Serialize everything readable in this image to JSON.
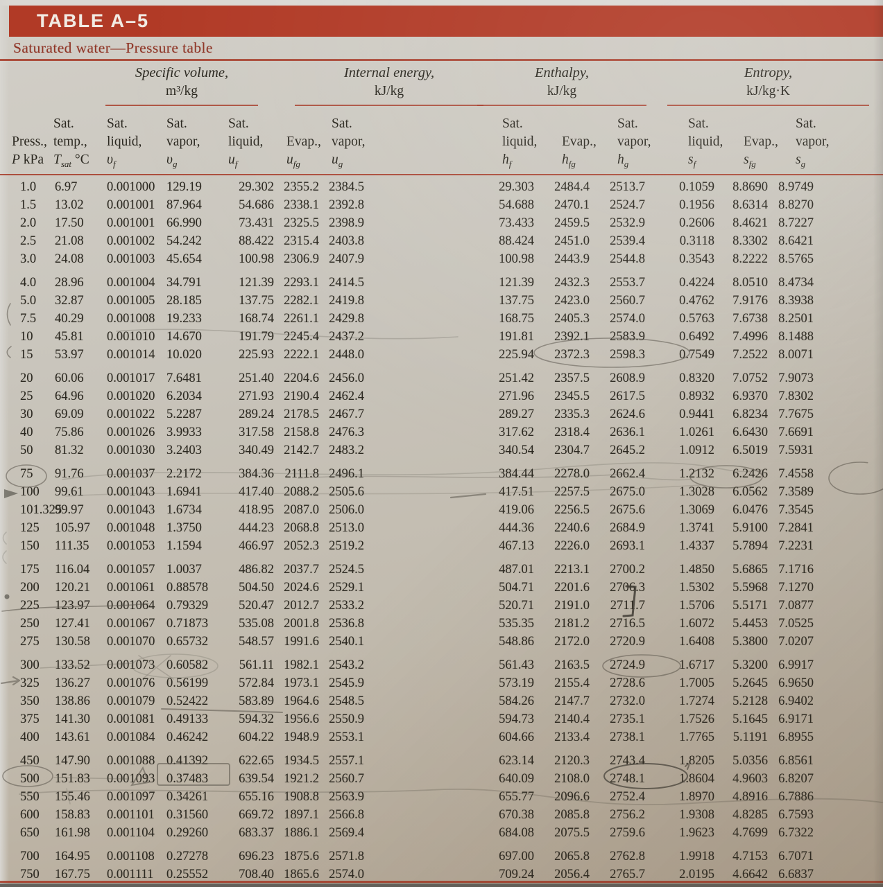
{
  "page": {
    "title": "TABLE A–5",
    "subtitle": "Saturated water—Pressure table",
    "band_color": "#b13a26",
    "rule_color": "#a63826",
    "paper_color": "#c9c5bc",
    "pencil_color": "#5b574e"
  },
  "table": {
    "col_groups": [
      {
        "label": "Specific volume,",
        "unit": "m³/kg"
      },
      {
        "label": "Internal energy,",
        "unit": "kJ/kg"
      },
      {
        "label": "Enthalpy,",
        "unit": "kJ/kg"
      },
      {
        "label": "Entropy,",
        "unit": "kJ/kg·K"
      }
    ],
    "columns": [
      {
        "top": "",
        "mid": "Press.,",
        "sym": "P",
        "sub": "",
        "tail": " kPa"
      },
      {
        "top": "Sat.",
        "mid": "temp.,",
        "sym": "T",
        "sub": "sat",
        "tail": " °C"
      },
      {
        "top": "Sat.",
        "mid": "liquid,",
        "sym": "υ",
        "sub": "f",
        "tail": ""
      },
      {
        "top": "Sat.",
        "mid": "vapor,",
        "sym": "υ",
        "sub": "g",
        "tail": ""
      },
      {
        "top": "Sat.",
        "mid": "liquid,",
        "sym": "u",
        "sub": "f",
        "tail": ""
      },
      {
        "top": "",
        "mid": "Evap.,",
        "sym": "u",
        "sub": "fg",
        "tail": ""
      },
      {
        "top": "Sat.",
        "mid": "vapor,",
        "sym": "u",
        "sub": "g",
        "tail": ""
      },
      {
        "top": "Sat.",
        "mid": "liquid,",
        "sym": "h",
        "sub": "f",
        "tail": ""
      },
      {
        "top": "",
        "mid": "Evap.,",
        "sym": "h",
        "sub": "fg",
        "tail": ""
      },
      {
        "top": "Sat.",
        "mid": "vapor,",
        "sym": "h",
        "sub": "g",
        "tail": ""
      },
      {
        "top": "Sat.",
        "mid": "liquid,",
        "sym": "s",
        "sub": "f",
        "tail": ""
      },
      {
        "top": "",
        "mid": "Evap.,",
        "sym": "s",
        "sub": "fg",
        "tail": ""
      },
      {
        "top": "Sat.",
        "mid": "vapor,",
        "sym": "s",
        "sub": "g",
        "tail": ""
      }
    ],
    "row_groups": [
      [
        [
          "1.0",
          "6.97",
          "0.001000",
          "129.19",
          "29.302",
          "2355.2",
          "2384.5",
          "29.303",
          "2484.4",
          "2513.7",
          "0.1059",
          "8.8690",
          "8.9749"
        ],
        [
          "1.5",
          "13.02",
          "0.001001",
          "87.964",
          "54.686",
          "2338.1",
          "2392.8",
          "54.688",
          "2470.1",
          "2524.7",
          "0.1956",
          "8.6314",
          "8.8270"
        ],
        [
          "2.0",
          "17.50",
          "0.001001",
          "66.990",
          "73.431",
          "2325.5",
          "2398.9",
          "73.433",
          "2459.5",
          "2532.9",
          "0.2606",
          "8.4621",
          "8.7227"
        ],
        [
          "2.5",
          "21.08",
          "0.001002",
          "54.242",
          "88.422",
          "2315.4",
          "2403.8",
          "88.424",
          "2451.0",
          "2539.4",
          "0.3118",
          "8.3302",
          "8.6421"
        ],
        [
          "3.0",
          "24.08",
          "0.001003",
          "45.654",
          "100.98",
          "2306.9",
          "2407.9",
          "100.98",
          "2443.9",
          "2544.8",
          "0.3543",
          "8.2222",
          "8.5765"
        ]
      ],
      [
        [
          "4.0",
          "28.96",
          "0.001004",
          "34.791",
          "121.39",
          "2293.1",
          "2414.5",
          "121.39",
          "2432.3",
          "2553.7",
          "0.4224",
          "8.0510",
          "8.4734"
        ],
        [
          "5.0",
          "32.87",
          "0.001005",
          "28.185",
          "137.75",
          "2282.1",
          "2419.8",
          "137.75",
          "2423.0",
          "2560.7",
          "0.4762",
          "7.9176",
          "8.3938"
        ],
        [
          "7.5",
          "40.29",
          "0.001008",
          "19.233",
          "168.74",
          "2261.1",
          "2429.8",
          "168.75",
          "2405.3",
          "2574.0",
          "0.5763",
          "7.6738",
          "8.2501"
        ],
        [
          "10",
          "45.81",
          "0.001010",
          "14.670",
          "191.79",
          "2245.4",
          "2437.2",
          "191.81",
          "2392.1",
          "2583.9",
          "0.6492",
          "7.4996",
          "8.1488"
        ],
        [
          "15",
          "53.97",
          "0.001014",
          "10.020",
          "225.93",
          "2222.1",
          "2448.0",
          "225.94",
          "2372.3",
          "2598.3",
          "0.7549",
          "7.2522",
          "8.0071"
        ]
      ],
      [
        [
          "20",
          "60.06",
          "0.001017",
          "7.6481",
          "251.40",
          "2204.6",
          "2456.0",
          "251.42",
          "2357.5",
          "2608.9",
          "0.8320",
          "7.0752",
          "7.9073"
        ],
        [
          "25",
          "64.96",
          "0.001020",
          "6.2034",
          "271.93",
          "2190.4",
          "2462.4",
          "271.96",
          "2345.5",
          "2617.5",
          "0.8932",
          "6.9370",
          "7.8302"
        ],
        [
          "30",
          "69.09",
          "0.001022",
          "5.2287",
          "289.24",
          "2178.5",
          "2467.7",
          "289.27",
          "2335.3",
          "2624.6",
          "0.9441",
          "6.8234",
          "7.7675"
        ],
        [
          "40",
          "75.86",
          "0.001026",
          "3.9933",
          "317.58",
          "2158.8",
          "2476.3",
          "317.62",
          "2318.4",
          "2636.1",
          "1.0261",
          "6.6430",
          "7.6691"
        ],
        [
          "50",
          "81.32",
          "0.001030",
          "3.2403",
          "340.49",
          "2142.7",
          "2483.2",
          "340.54",
          "2304.7",
          "2645.2",
          "1.0912",
          "6.5019",
          "7.5931"
        ]
      ],
      [
        [
          "75",
          "91.76",
          "0.001037",
          "2.2172",
          "384.36",
          "2111.8",
          "2496.1",
          "384.44",
          "2278.0",
          "2662.4",
          "1.2132",
          "6.2426",
          "7.4558"
        ],
        [
          "100",
          "99.61",
          "0.001043",
          "1.6941",
          "417.40",
          "2088.2",
          "2505.6",
          "417.51",
          "2257.5",
          "2675.0",
          "1.3028",
          "6.0562",
          "7.3589"
        ],
        [
          "101.325",
          "99.97",
          "0.001043",
          "1.6734",
          "418.95",
          "2087.0",
          "2506.0",
          "419.06",
          "2256.5",
          "2675.6",
          "1.3069",
          "6.0476",
          "7.3545"
        ],
        [
          "125",
          "105.97",
          "0.001048",
          "1.3750",
          "444.23",
          "2068.8",
          "2513.0",
          "444.36",
          "2240.6",
          "2684.9",
          "1.3741",
          "5.9100",
          "7.2841"
        ],
        [
          "150",
          "111.35",
          "0.001053",
          "1.1594",
          "466.97",
          "2052.3",
          "2519.2",
          "467.13",
          "2226.0",
          "2693.1",
          "1.4337",
          "5.7894",
          "7.2231"
        ]
      ],
      [
        [
          "175",
          "116.04",
          "0.001057",
          "1.0037",
          "486.82",
          "2037.7",
          "2524.5",
          "487.01",
          "2213.1",
          "2700.2",
          "1.4850",
          "5.6865",
          "7.1716"
        ],
        [
          "200",
          "120.21",
          "0.001061",
          "0.88578",
          "504.50",
          "2024.6",
          "2529.1",
          "504.71",
          "2201.6",
          "2706.3",
          "1.5302",
          "5.5968",
          "7.1270"
        ],
        [
          "225",
          "123.97",
          "0.001064",
          "0.79329",
          "520.47",
          "2012.7",
          "2533.2",
          "520.71",
          "2191.0",
          "2711.7",
          "1.5706",
          "5.5171",
          "7.0877"
        ],
        [
          "250",
          "127.41",
          "0.001067",
          "0.71873",
          "535.08",
          "2001.8",
          "2536.8",
          "535.35",
          "2181.2",
          "2716.5",
          "1.6072",
          "5.4453",
          "7.0525"
        ],
        [
          "275",
          "130.58",
          "0.001070",
          "0.65732",
          "548.57",
          "1991.6",
          "2540.1",
          "548.86",
          "2172.0",
          "2720.9",
          "1.6408",
          "5.3800",
          "7.0207"
        ]
      ],
      [
        [
          "300",
          "133.52",
          "0.001073",
          "0.60582",
          "561.11",
          "1982.1",
          "2543.2",
          "561.43",
          "2163.5",
          "2724.9",
          "1.6717",
          "5.3200",
          "6.9917"
        ],
        [
          "325",
          "136.27",
          "0.001076",
          "0.56199",
          "572.84",
          "1973.1",
          "2545.9",
          "573.19",
          "2155.4",
          "2728.6",
          "1.7005",
          "5.2645",
          "6.9650"
        ],
        [
          "350",
          "138.86",
          "0.001079",
          "0.52422",
          "583.89",
          "1964.6",
          "2548.5",
          "584.26",
          "2147.7",
          "2732.0",
          "1.7274",
          "5.2128",
          "6.9402"
        ],
        [
          "375",
          "141.30",
          "0.001081",
          "0.49133",
          "594.32",
          "1956.6",
          "2550.9",
          "594.73",
          "2140.4",
          "2735.1",
          "1.7526",
          "5.1645",
          "6.9171"
        ],
        [
          "400",
          "143.61",
          "0.001084",
          "0.46242",
          "604.22",
          "1948.9",
          "2553.1",
          "604.66",
          "2133.4",
          "2738.1",
          "1.7765",
          "5.1191",
          "6.8955"
        ]
      ],
      [
        [
          "450",
          "147.90",
          "0.001088",
          "0.41392",
          "622.65",
          "1934.5",
          "2557.1",
          "623.14",
          "2120.3",
          "2743.4",
          "1.8205",
          "5.0356",
          "6.8561"
        ],
        [
          "500",
          "151.83",
          "0.001093",
          "0.37483",
          "639.54",
          "1921.2",
          "2560.7",
          "640.09",
          "2108.0",
          "2748.1",
          "1.8604",
          "4.9603",
          "6.8207"
        ],
        [
          "550",
          "155.46",
          "0.001097",
          "0.34261",
          "655.16",
          "1908.8",
          "2563.9",
          "655.77",
          "2096.6",
          "2752.4",
          "1.8970",
          "4.8916",
          "6.7886"
        ],
        [
          "600",
          "158.83",
          "0.001101",
          "0.31560",
          "669.72",
          "1897.1",
          "2566.8",
          "670.38",
          "2085.8",
          "2756.2",
          "1.9308",
          "4.8285",
          "6.7593"
        ],
        [
          "650",
          "161.98",
          "0.001104",
          "0.29260",
          "683.37",
          "1886.1",
          "2569.4",
          "684.08",
          "2075.5",
          "2759.6",
          "1.9623",
          "4.7699",
          "6.7322"
        ]
      ],
      [
        [
          "700",
          "164.95",
          "0.001108",
          "0.27278",
          "696.23",
          "1875.6",
          "2571.8",
          "697.00",
          "2065.8",
          "2762.8",
          "1.9918",
          "4.7153",
          "6.7071"
        ],
        [
          "750",
          "167.75",
          "0.001111",
          "0.25552",
          "708.40",
          "1865.6",
          "2574.0",
          "709.24",
          "2056.4",
          "2765.7",
          "2.0195",
          "4.6642",
          "6.6837"
        ]
      ]
    ]
  }
}
